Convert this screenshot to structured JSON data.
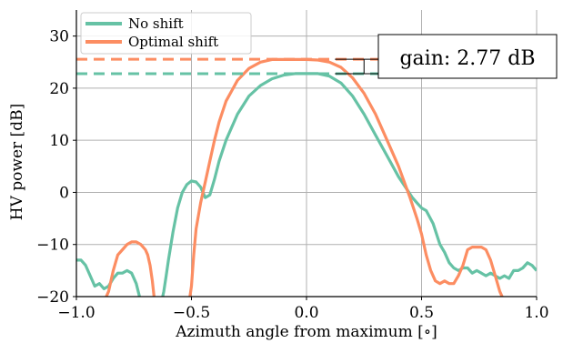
{
  "chart_data": {
    "type": "line",
    "title": "",
    "xlabel": "Azimuth angle from maximum [∘]",
    "ylabel": "HV power [dB]",
    "xlim": [
      -1.0,
      1.0
    ],
    "ylim": [
      -20,
      35
    ],
    "xticks": [
      "−1.0",
      "−0.5",
      "0.0",
      "0.5",
      "1.0"
    ],
    "yticks": [
      "−20",
      "−10",
      "0",
      "10",
      "20",
      "30"
    ],
    "xtick_values": [
      -1.0,
      -0.5,
      0.0,
      0.5,
      1.0
    ],
    "ytick_values": [
      -20,
      -10,
      0,
      10,
      20,
      30
    ],
    "grid": true,
    "legend_placement": "top-left",
    "series": [
      {
        "name": "No shift",
        "color": "#66c2a5",
        "x": [
          -1.0,
          -0.98,
          -0.96,
          -0.94,
          -0.92,
          -0.9,
          -0.88,
          -0.86,
          -0.84,
          -0.82,
          -0.8,
          -0.78,
          -0.76,
          -0.74,
          -0.72,
          -0.7,
          -0.69,
          -0.68,
          -0.67,
          -0.66,
          -0.65,
          -0.64,
          -0.63,
          -0.62,
          -0.61,
          -0.6,
          -0.58,
          -0.56,
          -0.54,
          -0.52,
          -0.5,
          -0.48,
          -0.46,
          -0.44,
          -0.42,
          -0.4,
          -0.38,
          -0.35,
          -0.3,
          -0.25,
          -0.2,
          -0.15,
          -0.1,
          -0.05,
          0.0,
          0.05,
          0.1,
          0.15,
          0.2,
          0.25,
          0.3,
          0.35,
          0.4,
          0.43,
          0.46,
          0.48,
          0.5,
          0.52,
          0.55,
          0.58,
          0.6,
          0.62,
          0.64,
          0.66,
          0.68,
          0.7,
          0.72,
          0.74,
          0.76,
          0.78,
          0.8,
          0.82,
          0.84,
          0.86,
          0.88,
          0.9,
          0.92,
          0.94,
          0.96,
          0.98,
          1.0
        ],
        "y": [
          -13,
          -13,
          -14,
          -16,
          -18,
          -17.5,
          -18.5,
          -18,
          -16.5,
          -15.5,
          -15.5,
          -15,
          -15.5,
          -17.5,
          -21,
          -21,
          -21,
          -21,
          -21,
          -21,
          -21,
          -21,
          -21,
          -19,
          -16,
          -13,
          -7.5,
          -3,
          0,
          1.5,
          2.2,
          2,
          1,
          -1,
          -0.5,
          2.5,
          6,
          10,
          15,
          18.5,
          20.5,
          21.8,
          22.5,
          22.8,
          22.8,
          22.8,
          22.3,
          21,
          18.5,
          15,
          11,
          7,
          3,
          1,
          -1,
          -2,
          -3,
          -3.5,
          -6,
          -10,
          -11.5,
          -13.5,
          -14.5,
          -15,
          -14.5,
          -14.5,
          -15.5,
          -15,
          -15.5,
          -16,
          -15.5,
          -16,
          -16.5,
          -16,
          -16.5,
          -15,
          -15,
          -14.5,
          -13.5,
          -14,
          -15
        ]
      },
      {
        "name": "Optimal shift",
        "color": "#fc8d62",
        "x": [
          -1.0,
          -0.98,
          -0.96,
          -0.94,
          -0.92,
          -0.9,
          -0.88,
          -0.86,
          -0.84,
          -0.82,
          -0.8,
          -0.78,
          -0.76,
          -0.74,
          -0.72,
          -0.7,
          -0.69,
          -0.68,
          -0.67,
          -0.66,
          -0.65,
          -0.64,
          -0.62,
          -0.6,
          -0.58,
          -0.56,
          -0.54,
          -0.53,
          -0.52,
          -0.51,
          -0.5,
          -0.49,
          -0.48,
          -0.46,
          -0.44,
          -0.42,
          -0.4,
          -0.38,
          -0.35,
          -0.3,
          -0.25,
          -0.2,
          -0.15,
          -0.1,
          -0.05,
          0.0,
          0.05,
          0.1,
          0.15,
          0.2,
          0.25,
          0.3,
          0.35,
          0.4,
          0.45,
          0.48,
          0.5,
          0.52,
          0.54,
          0.56,
          0.58,
          0.6,
          0.62,
          0.64,
          0.66,
          0.68,
          0.7,
          0.72,
          0.74,
          0.76,
          0.78,
          0.8,
          0.82,
          0.84,
          0.86,
          0.88,
          0.9,
          0.92,
          0.94,
          0.96,
          0.98,
          1.0
        ],
        "y": [
          -21,
          -21,
          -21,
          -21,
          -21,
          -21,
          -21,
          -19,
          -15,
          -12,
          -11,
          -10,
          -9.5,
          -9.5,
          -10,
          -11,
          -12,
          -14,
          -17,
          -21,
          -21,
          -21,
          -21,
          -21,
          -21,
          -21,
          -21,
          -21,
          -21,
          -21,
          -18,
          -12,
          -7,
          -2,
          2,
          6,
          10,
          13.5,
          17.5,
          21.5,
          23.8,
          25,
          25.5,
          25.5,
          25.5,
          25.5,
          25.4,
          25,
          24,
          22,
          19,
          15,
          10,
          5,
          -1,
          -5,
          -8,
          -12,
          -15,
          -17,
          -17.5,
          -17,
          -17.5,
          -17.5,
          -16,
          -14,
          -11,
          -10.5,
          -10.5,
          -10.5,
          -11,
          -13,
          -16,
          -19,
          -21,
          -21,
          -21,
          -21,
          -21,
          -21,
          -21,
          -21
        ]
      }
    ],
    "reference_lines": [
      {
        "series": "No shift",
        "y": 22.77,
        "style": "dashed"
      },
      {
        "series": "Optimal shift",
        "y": 25.54,
        "style": "dashed"
      }
    ],
    "annotation": {
      "text": "gain: 2.77 dB",
      "x": 0.25,
      "y_low": 22.77,
      "y_high": 25.54
    }
  }
}
